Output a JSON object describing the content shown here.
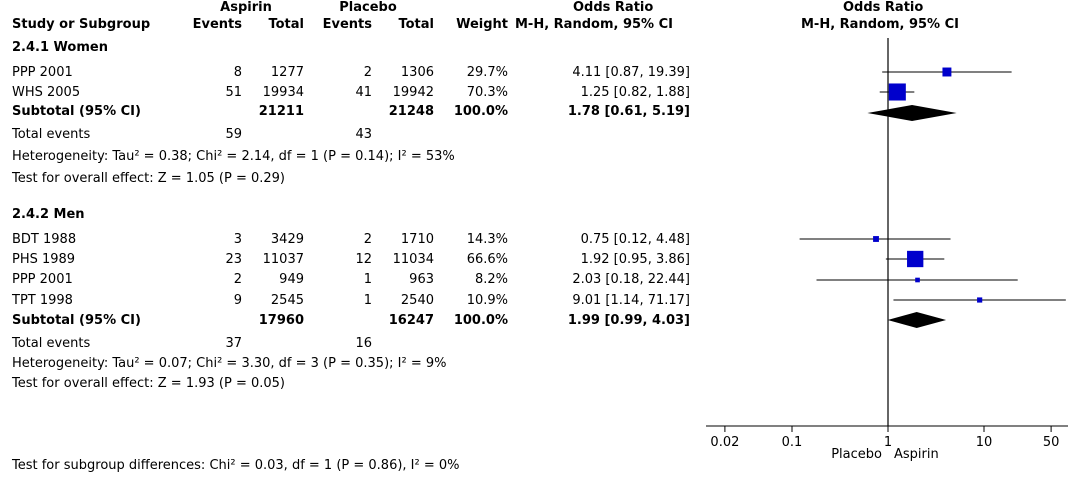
{
  "header": {
    "group_aspirin": "Aspirin",
    "group_placebo": "Placebo",
    "group_or": "Odds Ratio",
    "col_study": "Study or Subgroup",
    "col_events_a": "Events",
    "col_total_a": "Total",
    "col_events_p": "Events",
    "col_total_p": "Total",
    "col_weight": "Weight",
    "col_method": "M-H, Random, 95% CI",
    "plot_title": "Odds Ratio",
    "plot_method": "M-H, Random, 95% CI"
  },
  "subgroups": [
    {
      "title": "2.4.1 Women",
      "studies": [
        {
          "name": "PPP 2001",
          "ev_a": "8",
          "tot_a": "1277",
          "ev_p": "2",
          "tot_p": "1306",
          "weight": "29.7%",
          "ci": "4.11 [0.87, 19.39]"
        },
        {
          "name": "WHS 2005",
          "ev_a": "51",
          "tot_a": "19934",
          "ev_p": "41",
          "tot_p": "19942",
          "weight": "70.3%",
          "ci": "1.25 [0.82, 1.88]"
        }
      ],
      "subtotal": {
        "label": "Subtotal (95% CI)",
        "tot_a": "21211",
        "tot_p": "21248",
        "weight": "100.0%",
        "ci": "1.78 [0.61, 5.19]"
      },
      "total_events": {
        "label": "Total events",
        "ev_a": "59",
        "ev_p": "43"
      },
      "heterogeneity": "Heterogeneity: Tau² = 0.38; Chi² = 2.14, df = 1 (P = 0.14); I² = 53%",
      "overall": "Test for overall effect: Z = 1.05 (P = 0.29)"
    },
    {
      "title": "2.4.2 Men",
      "studies": [
        {
          "name": "BDT 1988",
          "ev_a": "3",
          "tot_a": "3429",
          "ev_p": "2",
          "tot_p": "1710",
          "weight": "14.3%",
          "ci": "0.75 [0.12, 4.48]"
        },
        {
          "name": "PHS 1989",
          "ev_a": "23",
          "tot_a": "11037",
          "ev_p": "12",
          "tot_p": "11034",
          "weight": "66.6%",
          "ci": "1.92 [0.95, 3.86]"
        },
        {
          "name": "PPP 2001",
          "ev_a": "2",
          "tot_a": "949",
          "ev_p": "1",
          "tot_p": "963",
          "weight": "8.2%",
          "ci": "2.03 [0.18, 22.44]"
        },
        {
          "name": "TPT 1998",
          "ev_a": "9",
          "tot_a": "2545",
          "ev_p": "1",
          "tot_p": "2540",
          "weight": "10.9%",
          "ci": "9.01 [1.14, 71.17]"
        }
      ],
      "subtotal": {
        "label": "Subtotal (95% CI)",
        "tot_a": "17960",
        "tot_p": "16247",
        "weight": "100.0%",
        "ci": "1.99 [0.99, 4.03]"
      },
      "total_events": {
        "label": "Total events",
        "ev_a": "37",
        "ev_p": "16"
      },
      "heterogeneity": "Heterogeneity: Tau² = 0.07; Chi² = 3.30, df = 3 (P = 0.35); I² = 9%",
      "overall": "Test for overall effect: Z = 1.93 (P = 0.05)"
    }
  ],
  "footer": {
    "subgroup_test": "Test for subgroup differences: Chi² = 0.03, df = 1 (P = 0.86), I² = 0%"
  },
  "chart_data": {
    "type": "forest",
    "scale": "log",
    "xlim": [
      0.02,
      50
    ],
    "ticks": [
      {
        "value": 0.02,
        "label": "0.02"
      },
      {
        "value": 0.1,
        "label": "0.1"
      },
      {
        "value": 1,
        "label": "1"
      },
      {
        "value": 10,
        "label": "10"
      },
      {
        "value": 50,
        "label": "50"
      }
    ],
    "favours_left": "Placebo",
    "favours_right": "Aspirin",
    "marker_color": "#0000cc",
    "studies": [
      {
        "name": "PPP 2001",
        "group": "2.4.1 Women",
        "or": 4.11,
        "lo": 0.87,
        "hi": 19.39,
        "weight": 29.7
      },
      {
        "name": "WHS 2005",
        "group": "2.4.1 Women",
        "or": 1.25,
        "lo": 0.82,
        "hi": 1.88,
        "weight": 70.3
      },
      {
        "name": "BDT 1988",
        "group": "2.4.2 Men",
        "or": 0.75,
        "lo": 0.12,
        "hi": 4.48,
        "weight": 14.3
      },
      {
        "name": "PHS 1989",
        "group": "2.4.2 Men",
        "or": 1.92,
        "lo": 0.95,
        "hi": 3.86,
        "weight": 66.6
      },
      {
        "name": "PPP 2001",
        "group": "2.4.2 Men",
        "or": 2.03,
        "lo": 0.18,
        "hi": 22.44,
        "weight": 8.2
      },
      {
        "name": "TPT 1998",
        "group": "2.4.2 Men",
        "or": 9.01,
        "lo": 1.14,
        "hi": 71.17,
        "weight": 10.9
      }
    ],
    "subtotals": [
      {
        "group": "2.4.1 Women",
        "or": 1.78,
        "lo": 0.61,
        "hi": 5.19
      },
      {
        "group": "2.4.2 Men",
        "or": 1.99,
        "lo": 0.99,
        "hi": 4.03
      }
    ]
  }
}
